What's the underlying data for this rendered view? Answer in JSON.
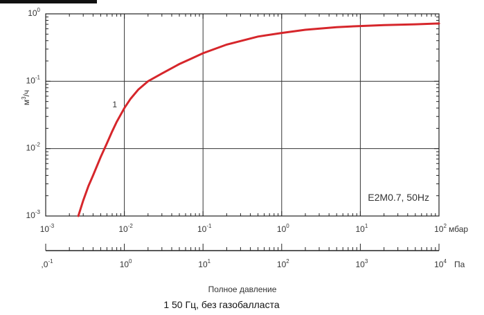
{
  "chart_data": {
    "type": "line",
    "title": "",
    "xlabel": "Полное давление",
    "ylabel": "м³/ч",
    "y_axis_label_base": "м",
    "y_axis_label_sup": "3",
    "y_axis_label_rest": "/ч",
    "x_scale": "log",
    "y_scale": "log",
    "xlim": [
      0.001,
      100
    ],
    "ylim": [
      0.001,
      1
    ],
    "grid": true,
    "x_unit": "мбар",
    "x2_unit": "Па",
    "x2_scale": "log",
    "x2_lim": [
      0.1,
      10000
    ],
    "x_ticks": [
      {
        "base": "10",
        "exp": "-3"
      },
      {
        "base": "10",
        "exp": "-2"
      },
      {
        "base": "10",
        "exp": "-1"
      },
      {
        "base": "10",
        "exp": "0"
      },
      {
        "base": "10",
        "exp": "1"
      },
      {
        "base": "10",
        "exp": "2"
      }
    ],
    "y_ticks": [
      {
        "base": "10",
        "exp": "0"
      },
      {
        "base": "10",
        "exp": "-1"
      },
      {
        "base": "10",
        "exp": "-2"
      },
      {
        "base": "10",
        "exp": "-3"
      }
    ],
    "x2_ticks": [
      {
        "base": ",0",
        "exp": "-1"
      },
      {
        "base": "10",
        "exp": "0"
      },
      {
        "base": "10",
        "exp": "1"
      },
      {
        "base": "10",
        "exp": "2"
      },
      {
        "base": "10",
        "exp": "3"
      },
      {
        "base": "10",
        "exp": "4"
      }
    ],
    "annotations": [
      {
        "text": "1",
        "x": 0.0065,
        "y": 0.04
      },
      {
        "text": "E2M0.7, 50Hz",
        "position": "bottom-right"
      }
    ],
    "series": [
      {
        "color": "#d6262b",
        "x": [
          0.0026,
          0.003,
          0.0035,
          0.004,
          0.005,
          0.006,
          0.007,
          0.008,
          0.01,
          0.012,
          0.015,
          0.02,
          0.03,
          0.05,
          0.07,
          0.1,
          0.2,
          0.5,
          1,
          2,
          5,
          10,
          20,
          50,
          100
        ],
        "y": [
          0.001,
          0.0017,
          0.0028,
          0.004,
          0.0075,
          0.012,
          0.018,
          0.025,
          0.04,
          0.055,
          0.075,
          0.1,
          0.13,
          0.18,
          0.215,
          0.26,
          0.35,
          0.46,
          0.52,
          0.58,
          0.635,
          0.66,
          0.68,
          0.7,
          0.72
        ]
      }
    ]
  },
  "caption": "1 50 Гц, без газобалласта"
}
